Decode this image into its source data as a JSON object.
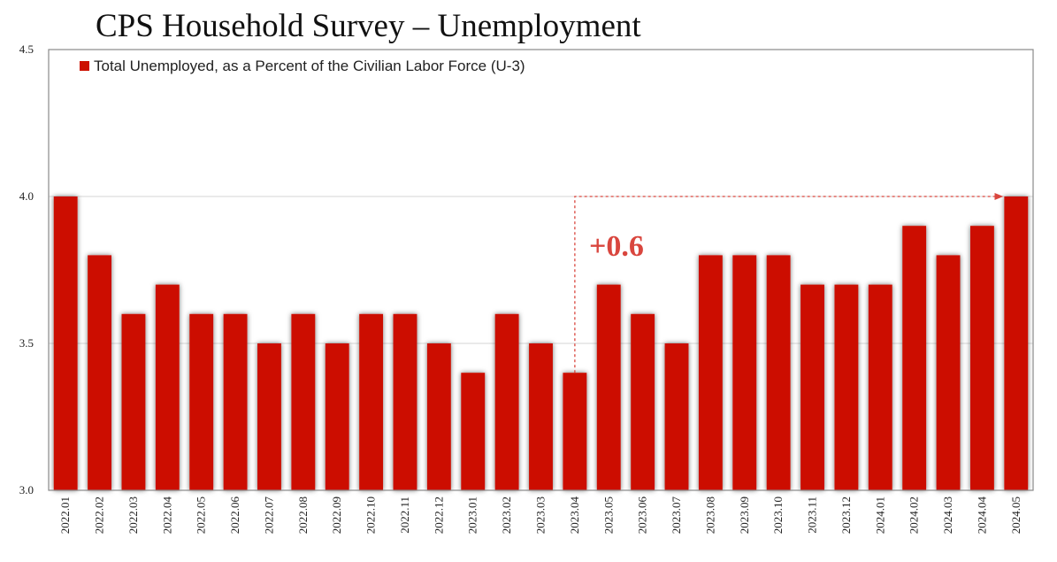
{
  "chart_data": {
    "type": "bar",
    "title": "CPS Household Survey – Unemployment",
    "legend": "Total Unemployed, as a Percent of the Civilian Labor Force (U-3)",
    "legend_position": "top-left",
    "xlabel": "",
    "ylabel": "",
    "ylim": [
      3.0,
      4.5
    ],
    "yticks": [
      3.0,
      3.5,
      4.0,
      4.5
    ],
    "ytick_labels": [
      "3.0",
      "3.5",
      "4.0",
      "4.5"
    ],
    "grid": true,
    "categories": [
      "2022.01",
      "2022.02",
      "2022.03",
      "2022.04",
      "2022.05",
      "2022.06",
      "2022.07",
      "2022.08",
      "2022.09",
      "2022.10",
      "2022.11",
      "2022.12",
      "2023.01",
      "2023.02",
      "2023.03",
      "2023.04",
      "2023.05",
      "2023.06",
      "2023.07",
      "2023.08",
      "2023.09",
      "2023.10",
      "2023.11",
      "2023.12",
      "2024.01",
      "2024.02",
      "2024.03",
      "2024.04",
      "2024.05"
    ],
    "values": [
      4.0,
      3.8,
      3.6,
      3.7,
      3.6,
      3.6,
      3.5,
      3.6,
      3.5,
      3.6,
      3.6,
      3.5,
      3.4,
      3.6,
      3.5,
      3.4,
      3.7,
      3.6,
      3.5,
      3.8,
      3.8,
      3.8,
      3.7,
      3.7,
      3.7,
      3.9,
      3.8,
      3.9,
      4.0
    ],
    "bar_color": "#cc1100",
    "annotation": {
      "text": "+0.6",
      "from_category": "2023.04",
      "to_category": "2024.05",
      "from_value": 3.4,
      "to_value": 4.0,
      "color": "#d9463e"
    }
  }
}
